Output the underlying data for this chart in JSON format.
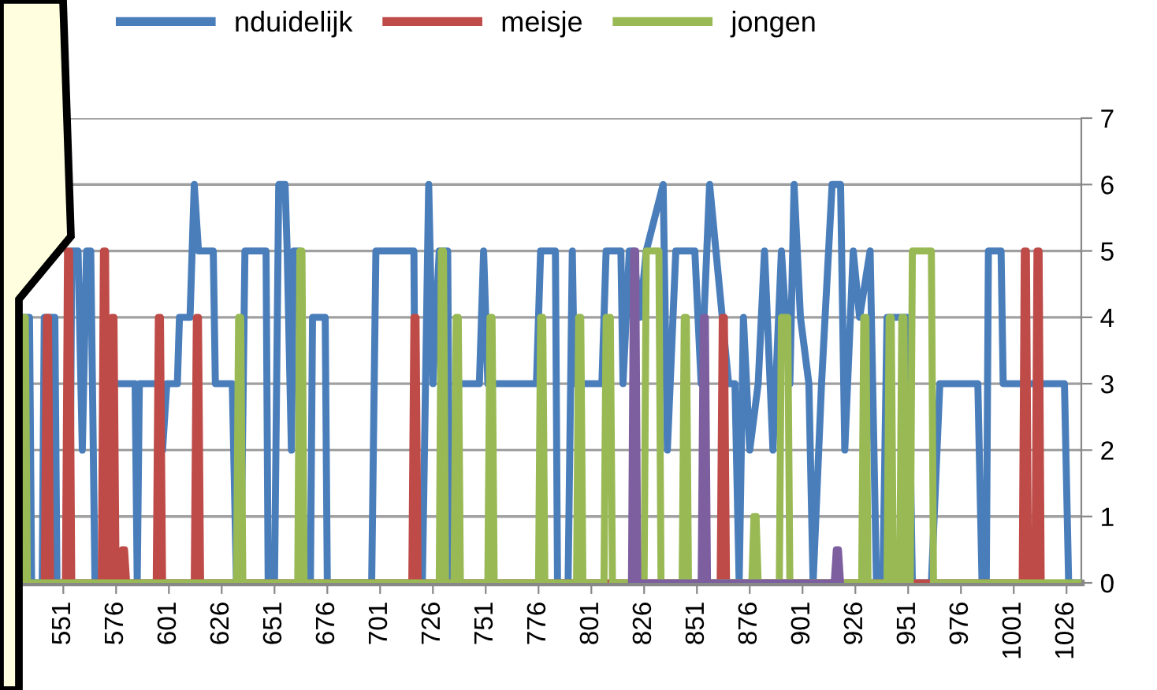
{
  "chart_data": {
    "type": "line",
    "grid": "y",
    "legend": "top",
    "marker": "none",
    "line_style": "solid",
    "xlim": [
      527,
      1033
    ],
    "ylim": [
      0,
      7
    ],
    "yticks": [
      0,
      1,
      2,
      3,
      4,
      5,
      6,
      7
    ],
    "xticks": [
      551,
      576,
      601,
      626,
      651,
      676,
      701,
      726,
      751,
      776,
      801,
      826,
      851,
      876,
      901,
      926,
      951,
      976,
      1001,
      1026
    ],
    "series": [
      {
        "name": "nduidelijk",
        "color": "#4a7ebb",
        "x": [
          531,
          535,
          536,
          541,
          542,
          547,
          548,
          554,
          555,
          558,
          560,
          562,
          564,
          566,
          573,
          575,
          585,
          586,
          587,
          596,
          598,
          600,
          605,
          606,
          611,
          613,
          615,
          622,
          623,
          631,
          633,
          635,
          637,
          647,
          648,
          651,
          653,
          656,
          657,
          659,
          660,
          663,
          665,
          668,
          669,
          675,
          676,
          697,
          699,
          717,
          718,
          721,
          724,
          726,
          729,
          733,
          734,
          736,
          738,
          748,
          750,
          752,
          775,
          777,
          784,
          785,
          790,
          792,
          793,
          806,
          808,
          815,
          816,
          819,
          821,
          824,
          827,
          835,
          837,
          841,
          850,
          853,
          857,
          860,
          866,
          869,
          871,
          873,
          876,
          880,
          883,
          887,
          891,
          895,
          897,
          900,
          904,
          906,
          910,
          915,
          919,
          921,
          925,
          928,
          933,
          936,
          939,
          941,
          951,
          953,
          962,
          966,
          984,
          986,
          988,
          989,
          995,
          996,
          1025,
          1027,
          1033
        ],
        "values": [
          4,
          4,
          0,
          0,
          4,
          4,
          0,
          0,
          5,
          5,
          2,
          5,
          5,
          0,
          0,
          3,
          3,
          0,
          3,
          3,
          2,
          3,
          3,
          4,
          4,
          6,
          5,
          5,
          3,
          3,
          0,
          0,
          5,
          5,
          0,
          0,
          6,
          6,
          5,
          2,
          5,
          5,
          0,
          0,
          4,
          4,
          0,
          0,
          5,
          5,
          0,
          0,
          6,
          3,
          5,
          5,
          0,
          0,
          3,
          3,
          5,
          3,
          3,
          5,
          5,
          0,
          0,
          5,
          3,
          3,
          5,
          5,
          3,
          5,
          5,
          4,
          5,
          6,
          2,
          5,
          5,
          3,
          6,
          5,
          3,
          3,
          0,
          4,
          2,
          3,
          5,
          2,
          5,
          3,
          6,
          4,
          3,
          0,
          3,
          6,
          6,
          2,
          5,
          4,
          5,
          0,
          0,
          4,
          4,
          0,
          0,
          3,
          3,
          0,
          0,
          5,
          5,
          3,
          3,
          0,
          0
        ]
      },
      {
        "name": "meisje",
        "color": "#be4b48",
        "x": [
          542,
          543,
          544,
          545,
          552,
          553,
          554,
          555,
          569,
          570,
          571,
          572,
          573,
          574,
          575,
          576,
          578,
          579,
          580,
          581,
          595,
          596,
          597,
          598,
          613,
          614,
          615,
          616,
          716,
          717,
          718,
          719,
          862,
          863,
          864,
          865,
          1005,
          1006,
          1007,
          1008,
          1011,
          1012,
          1013,
          1014
        ],
        "values": [
          0,
          4,
          4,
          0,
          0,
          5,
          5,
          0,
          0,
          5,
          5,
          0,
          0,
          4,
          4,
          0,
          0,
          0.5,
          0.5,
          0,
          0,
          4,
          4,
          0,
          0,
          4,
          4,
          0,
          0,
          4,
          4,
          0,
          0,
          4,
          4,
          0,
          0,
          5,
          5,
          0,
          0,
          5,
          5,
          0
        ]
      },
      {
        "name": "jongen",
        "color": "#98b954",
        "x": [
          531,
          532,
          533,
          534,
          633,
          634,
          635,
          636,
          662,
          663,
          664,
          665,
          729,
          730,
          731,
          732,
          736,
          737,
          738,
          739,
          752,
          753,
          754,
          755,
          776,
          777,
          778,
          779,
          794,
          795,
          796,
          797,
          807,
          808,
          810,
          811,
          826,
          827,
          833,
          834,
          844,
          845,
          846,
          847,
          877,
          878,
          879,
          880,
          890,
          891,
          894,
          895,
          929,
          930,
          931,
          932,
          941,
          942,
          943,
          944,
          947,
          948,
          949,
          950,
          952,
          953,
          962,
          963,
          1033
        ],
        "values": [
          0,
          4,
          4,
          0,
          0,
          4,
          4,
          0,
          0,
          5,
          5,
          0,
          0,
          5,
          5,
          0,
          0,
          4,
          4,
          0,
          0,
          4,
          4,
          0,
          0,
          4,
          4,
          0,
          0,
          4,
          4,
          0,
          0,
          4,
          4,
          0,
          0,
          5,
          5,
          0,
          0,
          4,
          4,
          0,
          0,
          1,
          1,
          0,
          0,
          4,
          4,
          0,
          0,
          4,
          4,
          0,
          0,
          4,
          4,
          0,
          0,
          4,
          4,
          0,
          0,
          5,
          5,
          0,
          0
        ]
      },
      {
        "color": "#7d5fa0",
        "x": [
          820,
          821,
          822,
          823,
          853,
          854,
          855,
          856,
          916,
          917,
          918,
          919
        ],
        "values": [
          0,
          5,
          5,
          0,
          0,
          4,
          4,
          0,
          0,
          0.5,
          0.5,
          0
        ]
      }
    ]
  }
}
